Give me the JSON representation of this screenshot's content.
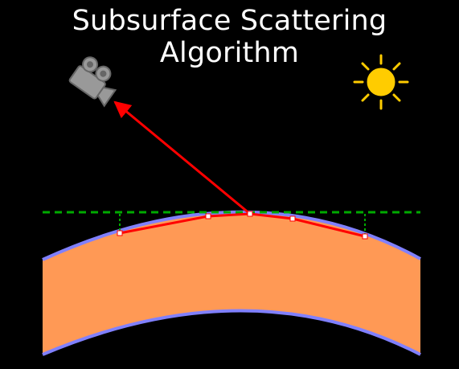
{
  "title": "Subsurface Scattering Algorithm",
  "colors": {
    "background": "#000000",
    "title_text": "#ffffff",
    "slab_fill": "#ff9955",
    "slab_outline": "#8080ff",
    "tangent_line": "#00aa00",
    "ray": "#ff0000",
    "sample_point": "#ffffff",
    "camera": "#999999",
    "sun": "#ffcc00"
  },
  "icons": {
    "camera": "video-camera-icon",
    "sun": "sun-icon"
  }
}
